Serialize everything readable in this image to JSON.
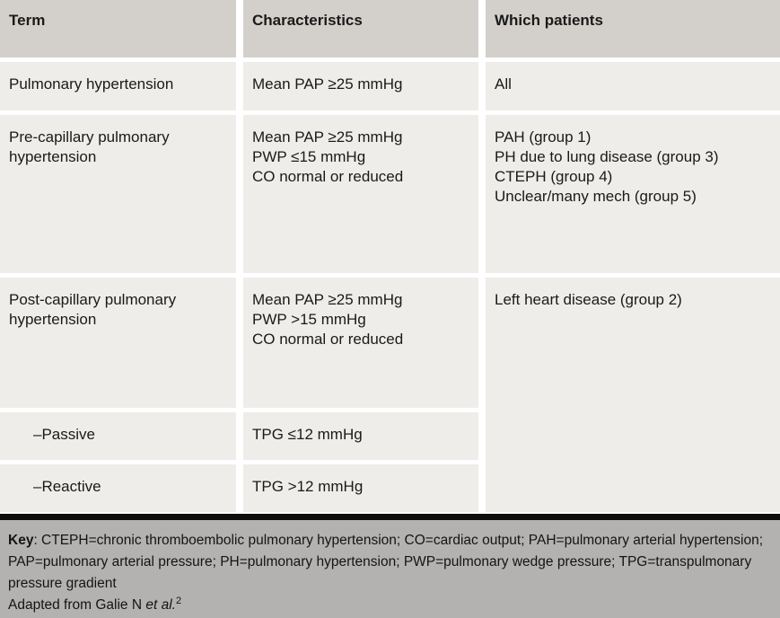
{
  "table": {
    "columns": [
      {
        "label": "Term"
      },
      {
        "label": "Characteristics"
      },
      {
        "label": "Which patients"
      }
    ],
    "rows": [
      {
        "term": "Pulmonary hypertension",
        "characteristics": [
          "Mean PAP ≥25 mmHg"
        ],
        "patients": [
          "All"
        ]
      },
      {
        "term": "Pre-capillary pulmonary hypertension",
        "characteristics": [
          "Mean PAP ≥25 mmHg",
          "PWP ≤15 mmHg",
          "CO normal or reduced"
        ],
        "patients": [
          "PAH (group 1)",
          "PH due to lung disease (group 3)",
          "CTEPH (group 4)",
          "Unclear/many mech (group 5)"
        ]
      },
      {
        "term": "Post-capillary pulmonary hypertension",
        "characteristics": [
          "Mean PAP ≥25 mmHg",
          "PWP >15 mmHg",
          "CO normal or reduced"
        ],
        "patients": [
          "Left heart disease (group 2)"
        ]
      },
      {
        "term": "–Passive",
        "characteristics": [
          "TPG ≤12 mmHg"
        ],
        "patients": []
      },
      {
        "term": "–Reactive",
        "characteristics": [
          "TPG >12 mmHg"
        ],
        "patients": []
      }
    ]
  },
  "footer": {
    "key_label": "Key",
    "key_text": ": CTEPH=chronic thromboembolic pulmonary hypertension; CO=cardiac output; PAH=pulmonary arterial hypertension; PAP=pulmonary arterial pressure; PH=pulmonary hypertension; PWP=pulmonary wedge pressure; TPG=transpulmonary pressure gradient",
    "adapted_prefix": "Adapted from Galie N ",
    "adapted_italic": "et al.",
    "adapted_ref": "2"
  },
  "colors": {
    "header_bg": "#d3d0cb",
    "cell_bg": "#eeedea",
    "footer_bg": "#b3b2b0",
    "divider": "#0e0e0e",
    "gutter": "#ffffff",
    "text": "#1a1a1a"
  }
}
